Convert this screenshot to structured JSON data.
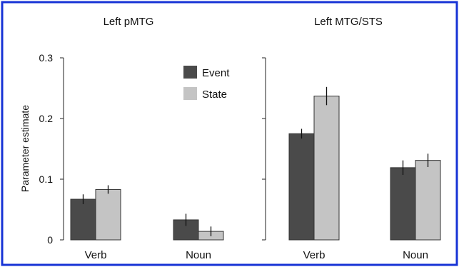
{
  "colors": {
    "frame": "#1733d6",
    "event": "#4a4a4a",
    "state": "#c4c4c4",
    "axis": "#222222"
  },
  "ylabel": "Parameter estimate",
  "legend": {
    "event": "Event",
    "state": "State"
  },
  "chart_data": [
    {
      "type": "bar",
      "title": "Left pMTG",
      "categories": [
        "Verb",
        "Noun"
      ],
      "series": [
        {
          "name": "Event",
          "values": [
            0.067,
            0.033
          ],
          "error": [
            0.008,
            0.01
          ]
        },
        {
          "name": "State",
          "values": [
            0.083,
            0.014
          ],
          "error": [
            0.007,
            0.008
          ]
        }
      ],
      "ylabel": "Parameter estimate",
      "ylim": [
        0,
        0.3
      ],
      "yticks": [
        "0",
        "0.1",
        "0.2",
        "0.3"
      ],
      "legend_position": "top-right",
      "grid": false
    },
    {
      "type": "bar",
      "title": "Left MTG/STS",
      "categories": [
        "Verb",
        "Noun"
      ],
      "series": [
        {
          "name": "Event",
          "values": [
            0.175,
            0.119
          ],
          "error": [
            0.008,
            0.012
          ]
        },
        {
          "name": "State",
          "values": [
            0.237,
            0.131
          ],
          "error": [
            0.015,
            0.011
          ]
        }
      ],
      "ylim": [
        0,
        0.3
      ],
      "yticks": [],
      "grid": false
    }
  ]
}
